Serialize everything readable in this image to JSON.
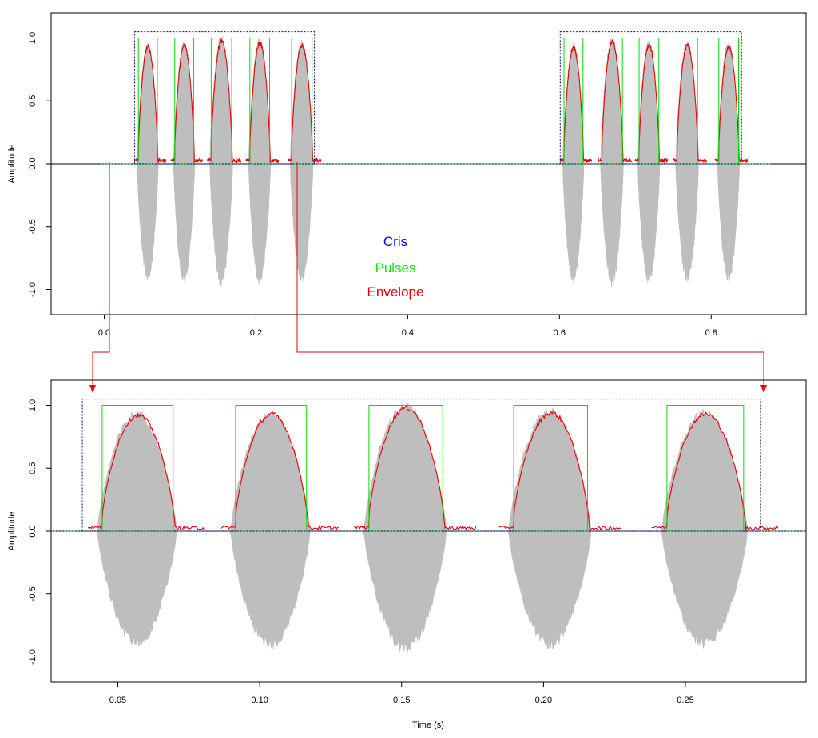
{
  "chart_data": [
    {
      "type": "line",
      "panel": "overview",
      "xlabel": "",
      "ylabel": "Amplitude",
      "xlim": [
        -0.07,
        0.925
      ],
      "ylim": [
        -1.2,
        1.2
      ],
      "x_ticks": [
        "0.0",
        "0.2",
        "0.4",
        "0.6",
        "0.8"
      ],
      "y_ticks": [
        "-1.0",
        "-0.5",
        "0.0",
        "0.5",
        "1.0"
      ],
      "legend": [
        {
          "label": "Cris",
          "color": "#0000ee"
        },
        {
          "label": "Pulses",
          "color": "#00ee00"
        },
        {
          "label": "Envelope",
          "color": "#ee0000"
        }
      ],
      "legend_position": "center",
      "series": [
        {
          "name": "Cris",
          "kind": "boxes",
          "color": "#00008b",
          "intervals": [
            [
              0.04,
              0.277
            ],
            [
              0.601,
              0.84
            ]
          ],
          "level": 1.05
        },
        {
          "name": "Pulses",
          "kind": "boxes",
          "color": "#00dd00",
          "level": 1.0,
          "intervals": [
            [
              0.045,
              0.07
            ],
            [
              0.093,
              0.118
            ],
            [
              0.141,
              0.168
            ],
            [
              0.192,
              0.218
            ],
            [
              0.247,
              0.274
            ],
            [
              0.606,
              0.631
            ],
            [
              0.656,
              0.683
            ],
            [
              0.705,
              0.731
            ],
            [
              0.755,
              0.782
            ],
            [
              0.81,
              0.836
            ]
          ]
        },
        {
          "name": "Envelope",
          "kind": "envelope",
          "color": "#ee0000",
          "peaks": [
            0.94,
            0.95,
            0.99,
            0.97,
            0.95,
            0.93,
            0.98,
            0.95,
            0.95,
            0.94
          ]
        }
      ],
      "waveform": {
        "color": "#bebebe",
        "neg_peaks": [
          -0.9,
          -0.92,
          -0.95,
          -0.93,
          -0.92,
          -0.92,
          -0.95,
          -0.93,
          -0.92,
          -0.91
        ],
        "end": 0.88
      }
    },
    {
      "type": "line",
      "panel": "zoom",
      "xlabel": "Time (s)",
      "ylabel": "Amplitude",
      "xlim": [
        0.0265,
        0.2925
      ],
      "ylim": [
        -1.2,
        1.2
      ],
      "x_ticks": [
        "0.05",
        "0.10",
        "0.15",
        "0.20",
        "0.25"
      ],
      "y_ticks": [
        "-1.0",
        "-0.5",
        "0.0",
        "0.5",
        "1.0"
      ],
      "series": [
        {
          "name": "Cris",
          "kind": "boxes",
          "color": "#00008b",
          "intervals": [
            [
              0.0375,
              0.2765
            ]
          ],
          "level": 1.05
        },
        {
          "name": "Pulses",
          "kind": "boxes",
          "color": "#00dd00",
          "level": 1.0,
          "intervals": [
            [
              0.0445,
              0.0695
            ],
            [
              0.0915,
              0.1165
            ],
            [
              0.1385,
              0.1645
            ],
            [
              0.1895,
              0.2155
            ],
            [
              0.2435,
              0.2705
            ]
          ]
        },
        {
          "name": "Envelope",
          "kind": "envelope",
          "color": "#ee0000",
          "peaks": [
            0.93,
            0.94,
            0.99,
            0.95,
            0.94
          ]
        }
      ],
      "waveform": {
        "color": "#bebebe",
        "neg_peaks": [
          -0.89,
          -0.91,
          -0.94,
          -0.91,
          -0.9
        ]
      }
    }
  ]
}
